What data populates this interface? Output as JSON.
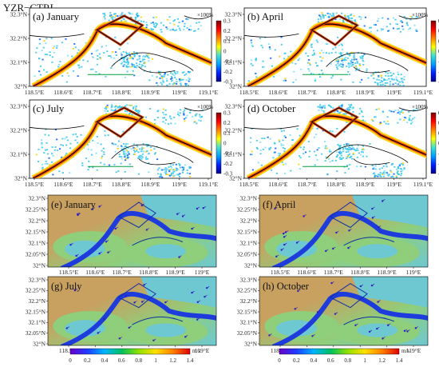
{
  "header": {
    "title": "YZR−CTRL"
  },
  "chart_data": [
    {
      "type": "heatmap",
      "group": "relative-difference",
      "panels": [
        {
          "label": "(a) January"
        },
        {
          "label": "(b) April"
        },
        {
          "label": "(c) July"
        },
        {
          "label": "(d) October"
        }
      ],
      "x_ticks": [
        "118.5°E",
        "118.6°E",
        "118.7°E",
        "118.8°E",
        "118.9°E",
        "119°E",
        "119.1°E"
      ],
      "y_ticks": [
        "32.3°N",
        "32.2°N",
        "32.1°N",
        "32°N"
      ],
      "colorbar": {
        "title": "×100%",
        "ticks": [
          "0.3",
          "0.2",
          "0.1",
          "0",
          "-0.1",
          "-0.2",
          "-0.3"
        ],
        "range": [
          -0.3,
          0.3
        ]
      }
    },
    {
      "type": "heatmap",
      "group": "wind-speed",
      "panels": [
        {
          "label": "(e) January"
        },
        {
          "label": "(f) April"
        },
        {
          "label": "(g) July"
        },
        {
          "label": "(h) October"
        }
      ],
      "x_ticks": [
        "118.5°E",
        "118.6°E",
        "118.7°E",
        "118.8°E",
        "118.9°E",
        "119°E"
      ],
      "y_ticks": [
        "32.3°N",
        "32.25°N",
        "32.2°N",
        "32.15°N",
        "32.1°N",
        "32.05°N",
        "32°N"
      ],
      "colorbar": {
        "unit": "m/s",
        "ticks": [
          "0",
          "0.2",
          "0.4",
          "0.6",
          "0.8",
          "1",
          "1.2",
          "1.4"
        ],
        "range": [
          0,
          1.4
        ]
      }
    }
  ],
  "colors": {
    "diverging": [
      "#00008f",
      "#0020ff",
      "#00a0ff",
      "#40e0d0",
      "#ffff00",
      "#ff8000",
      "#ff0000",
      "#800000"
    ],
    "sequential": [
      "#6a00c8",
      "#1e3cff",
      "#00b4ff",
      "#00c060",
      "#90e000",
      "#ffe000",
      "#ff8000",
      "#e00000"
    ],
    "terrain_low": "#6ec8d2",
    "terrain_mid": "#8fce7a",
    "terrain_high": "#c8a060",
    "river": "#1e3cdc"
  }
}
